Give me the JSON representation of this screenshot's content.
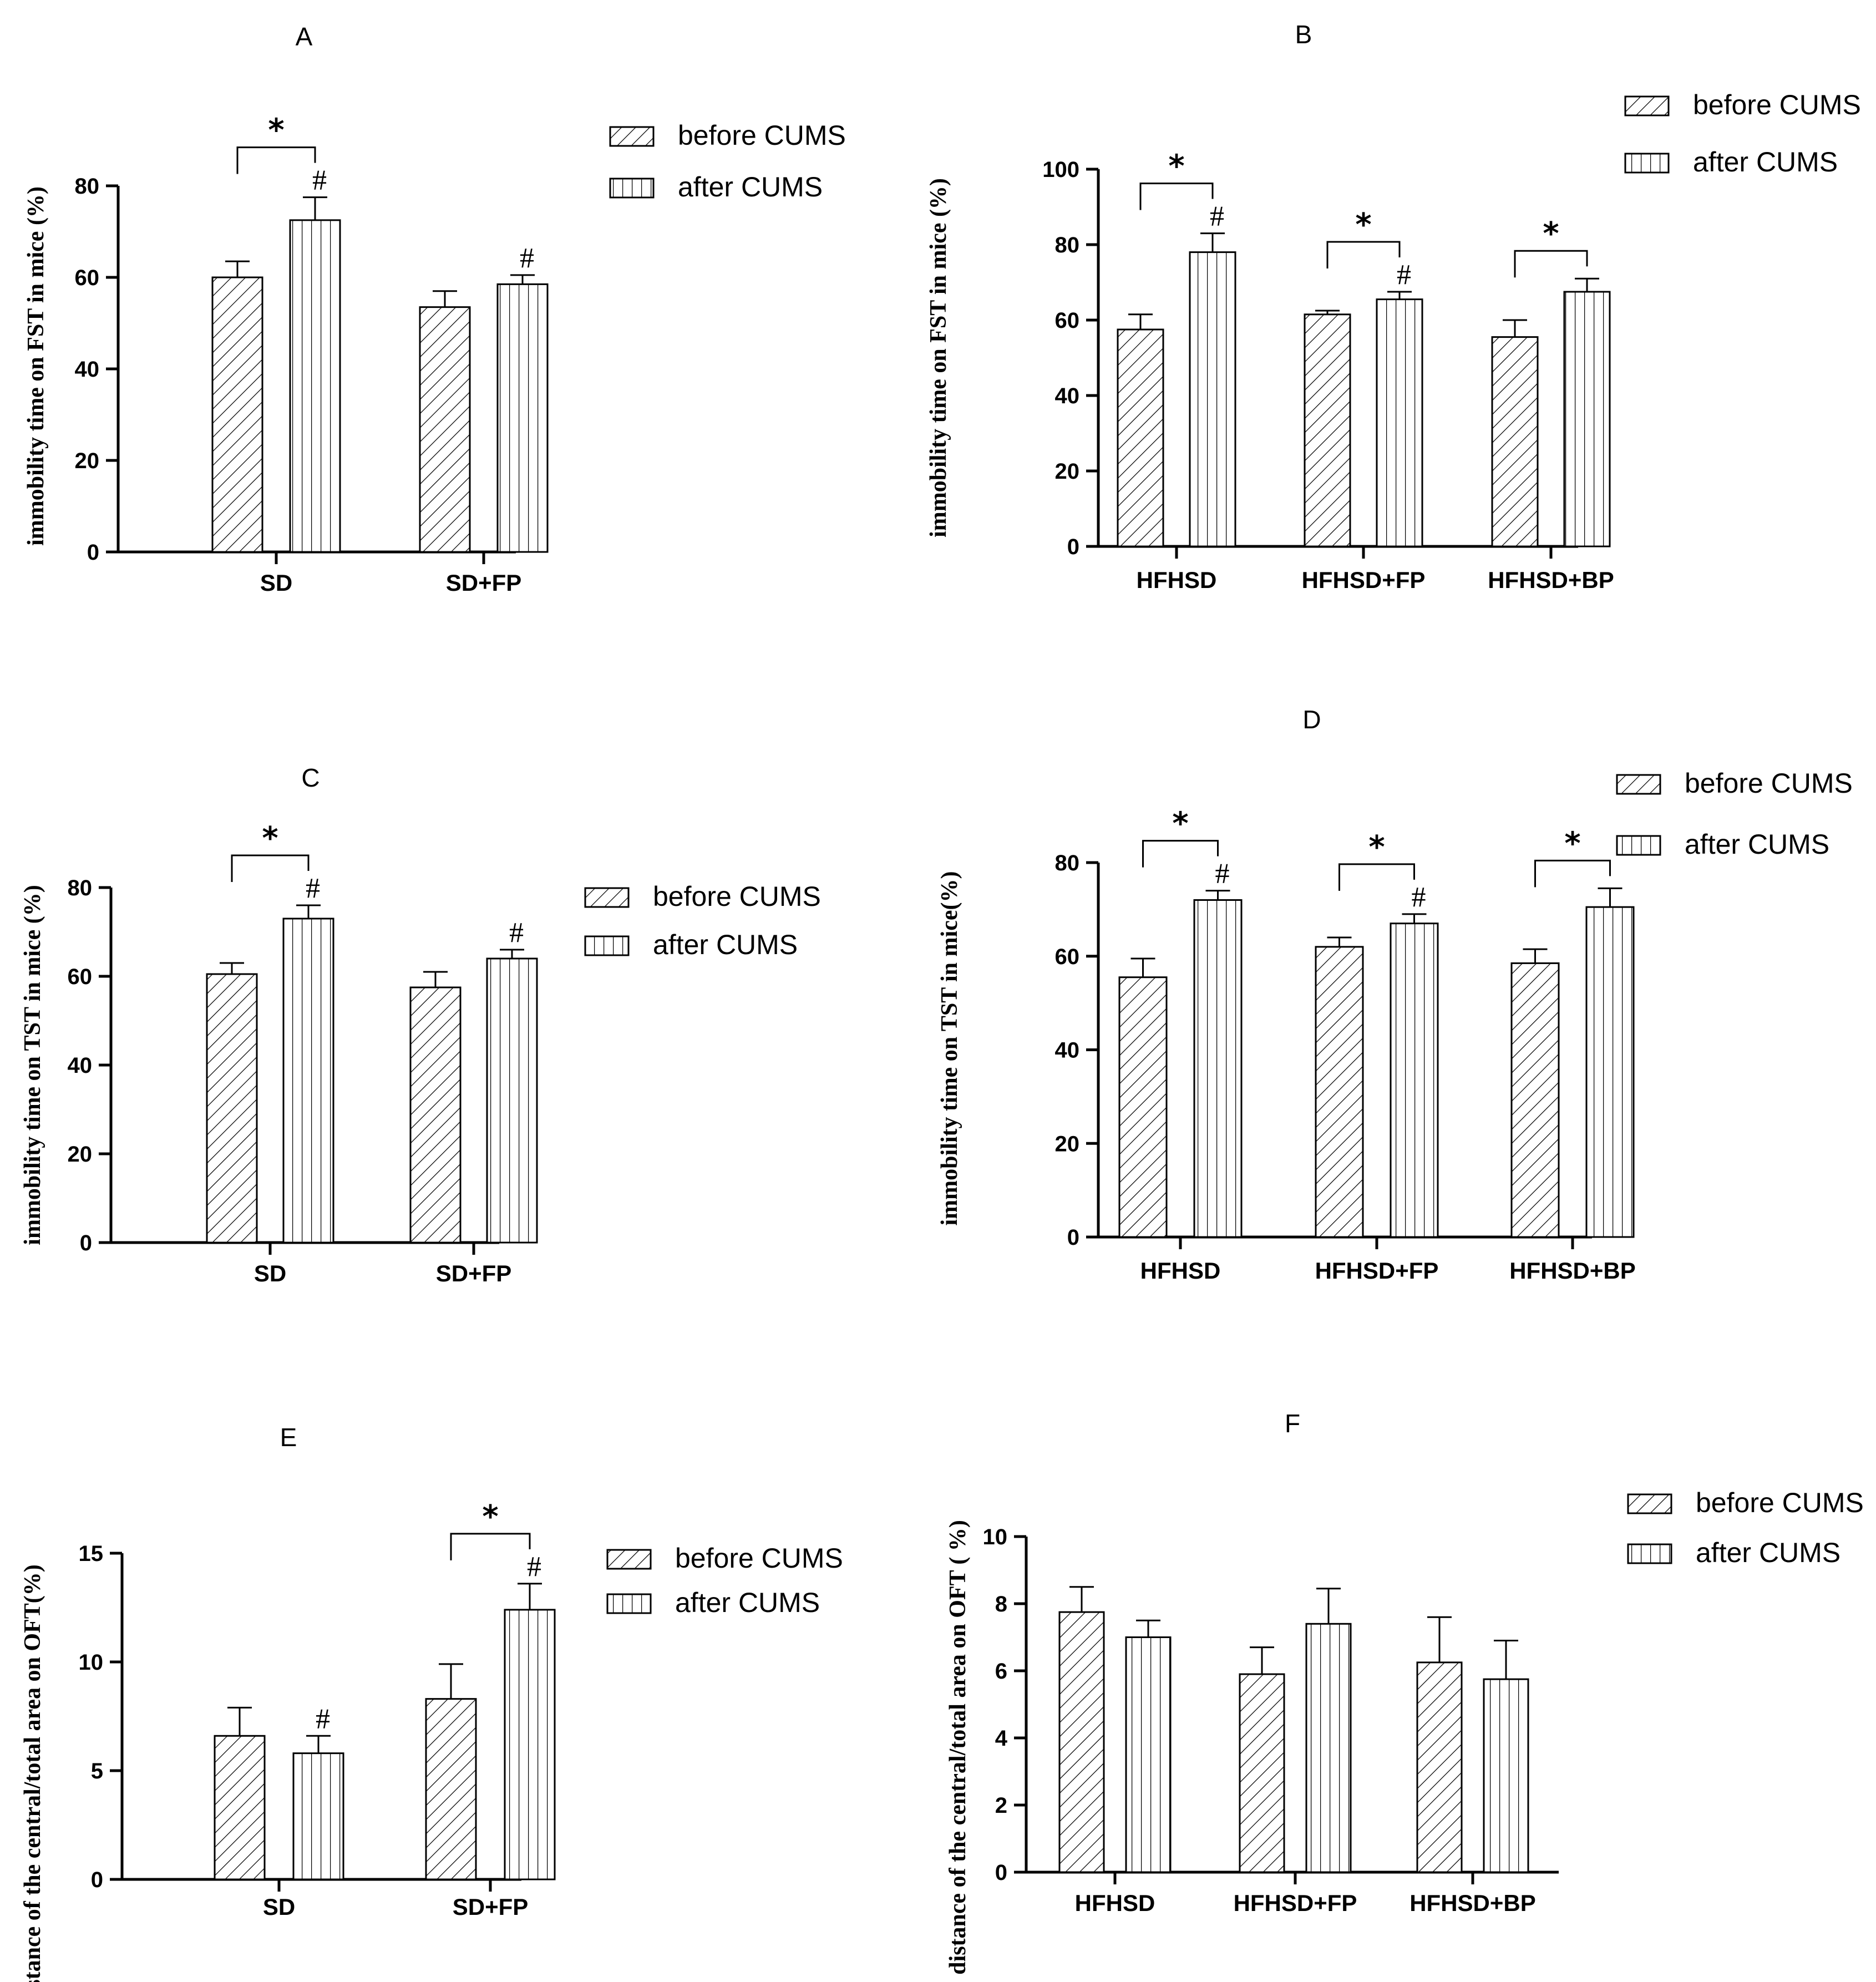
{
  "figure": {
    "colors": {
      "ink": "#000000",
      "background": "#ffffff"
    }
  },
  "chart_data": [
    {
      "panel": "A",
      "type": "bar",
      "title": "A",
      "ylabel": "immobility time on FST in mice (%)",
      "xlabel": "",
      "ylim": [
        0,
        80
      ],
      "yticks": [
        "0",
        "20",
        "40",
        "60",
        "80"
      ],
      "categories": [
        "SD",
        "SD+FP"
      ],
      "series": [
        {
          "name": "before CUMS",
          "pattern": "diagonal",
          "values": [
            60,
            53.5
          ],
          "errors": [
            3.5,
            3.5
          ]
        },
        {
          "name": "after CUMS",
          "pattern": "vertical",
          "values": [
            72.5,
            58.5
          ],
          "errors": [
            5,
            2
          ]
        }
      ],
      "legend": [
        "before CUMS",
        "after CUMS"
      ],
      "significance": [
        {
          "category": 0,
          "bracket": "*"
        }
      ],
      "hash": [
        {
          "category": 0,
          "series": 1,
          "text": "#"
        },
        {
          "category": 1,
          "series": 1,
          "text": "#"
        }
      ]
    },
    {
      "panel": "B",
      "type": "bar",
      "title": "B",
      "ylabel": "immobility time on FST in mice (%)",
      "xlabel": "",
      "ylim": [
        0,
        100
      ],
      "yticks": [
        "0",
        "20",
        "40",
        "60",
        "80",
        "100"
      ],
      "categories": [
        "HFHSD",
        "HFHSD+FP",
        "HFHSD+BP"
      ],
      "series": [
        {
          "name": "before CUMS",
          "pattern": "diagonal",
          "values": [
            57.5,
            61.5,
            55.5
          ],
          "errors": [
            4,
            1,
            4.5
          ]
        },
        {
          "name": "after CUMS",
          "pattern": "vertical",
          "values": [
            78,
            65.5,
            67.5
          ],
          "errors": [
            5,
            2,
            3.5
          ]
        }
      ],
      "legend": [
        "before CUMS",
        "after CUMS"
      ],
      "significance": [
        {
          "category": 0,
          "bracket": "*"
        },
        {
          "category": 1,
          "bracket": "*"
        },
        {
          "category": 2,
          "bracket": "*"
        }
      ],
      "hash": [
        {
          "category": 0,
          "series": 1,
          "text": "#"
        },
        {
          "category": 1,
          "series": 1,
          "text": "#"
        }
      ]
    },
    {
      "panel": "C",
      "type": "bar",
      "title": "C",
      "ylabel": "immobility time on TST in mice (%)",
      "xlabel": "",
      "ylim": [
        0,
        80
      ],
      "yticks": [
        "0",
        "20",
        "40",
        "60",
        "80"
      ],
      "categories": [
        "SD",
        "SD+FP"
      ],
      "series": [
        {
          "name": "before CUMS",
          "pattern": "diagonal",
          "values": [
            60.5,
            57.5
          ],
          "errors": [
            2.5,
            3.5
          ]
        },
        {
          "name": "after CUMS",
          "pattern": "vertical",
          "values": [
            73,
            64
          ],
          "errors": [
            3,
            2
          ]
        }
      ],
      "legend": [
        "before CUMS",
        "after CUMS"
      ],
      "significance": [
        {
          "category": 0,
          "bracket": "*"
        }
      ],
      "hash": [
        {
          "category": 0,
          "series": 1,
          "text": "#"
        },
        {
          "category": 1,
          "series": 1,
          "text": "#"
        }
      ]
    },
    {
      "panel": "D",
      "type": "bar",
      "title": "D",
      "ylabel": "immobility time on TST in mice(%)",
      "xlabel": "",
      "ylim": [
        0,
        80
      ],
      "yticks": [
        "0",
        "20",
        "40",
        "60",
        "80"
      ],
      "categories": [
        "HFHSD",
        "HFHSD+FP",
        "HFHSD+BP"
      ],
      "series": [
        {
          "name": "before CUMS",
          "pattern": "diagonal",
          "values": [
            55.5,
            62,
            58.5
          ],
          "errors": [
            4,
            2,
            3
          ]
        },
        {
          "name": "after CUMS",
          "pattern": "vertical",
          "values": [
            72,
            67,
            70.5
          ],
          "errors": [
            2,
            2,
            4
          ]
        }
      ],
      "legend": [
        "before CUMS",
        "after CUMS"
      ],
      "significance": [
        {
          "category": 0,
          "bracket": "*"
        },
        {
          "category": 1,
          "bracket": "*"
        },
        {
          "category": 2,
          "bracket": "*"
        }
      ],
      "hash": [
        {
          "category": 0,
          "series": 1,
          "text": "#"
        },
        {
          "category": 1,
          "series": 1,
          "text": "#"
        }
      ]
    },
    {
      "panel": "E",
      "type": "bar",
      "title": "E",
      "ylabel": "distance of the central/total area on OFT(%)",
      "xlabel": "",
      "ylim": [
        0,
        15
      ],
      "yticks": [
        "0",
        "5",
        "10",
        "15"
      ],
      "categories": [
        "SD",
        "SD+FP"
      ],
      "series": [
        {
          "name": "before CUMS",
          "pattern": "diagonal",
          "values": [
            6.6,
            8.3
          ],
          "errors": [
            1.3,
            1.6
          ]
        },
        {
          "name": "after CUMS",
          "pattern": "vertical",
          "values": [
            5.8,
            12.4
          ],
          "errors": [
            0.8,
            1.2
          ]
        }
      ],
      "legend": [
        "before CUMS",
        "after CUMS"
      ],
      "significance": [
        {
          "category": 1,
          "bracket": "*"
        }
      ],
      "hash": [
        {
          "category": 0,
          "series": 1,
          "text": "#"
        },
        {
          "category": 1,
          "series": 1,
          "text": "#"
        }
      ]
    },
    {
      "panel": "F",
      "type": "bar",
      "title": "F",
      "ylabel": "distance of the central/total area on OFT ( %)",
      "xlabel": "",
      "ylim": [
        0,
        10
      ],
      "yticks": [
        "0",
        "2",
        "4",
        "6",
        "8",
        "10"
      ],
      "categories": [
        "HFHSD",
        "HFHSD+FP",
        "HFHSD+BP"
      ],
      "series": [
        {
          "name": "before CUMS",
          "pattern": "diagonal",
          "values": [
            7.75,
            5.9,
            6.25
          ],
          "errors": [
            0.75,
            0.8,
            1.35
          ]
        },
        {
          "name": "after CUMS",
          "pattern": "vertical",
          "values": [
            7,
            7.4,
            5.75
          ],
          "errors": [
            0.5,
            1.05,
            1.15
          ]
        }
      ],
      "legend": [
        "before CUMS",
        "after CUMS"
      ],
      "significance": [],
      "hash": []
    }
  ]
}
